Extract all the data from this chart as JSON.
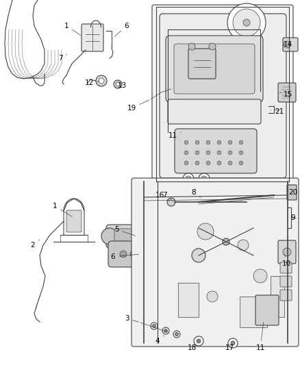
{
  "background_color": "#ffffff",
  "line_color": "#404040",
  "label_color": "#000000",
  "label_fontsize": 7.5,
  "fig_width": 4.38,
  "fig_height": 5.33,
  "dpi": 100
}
